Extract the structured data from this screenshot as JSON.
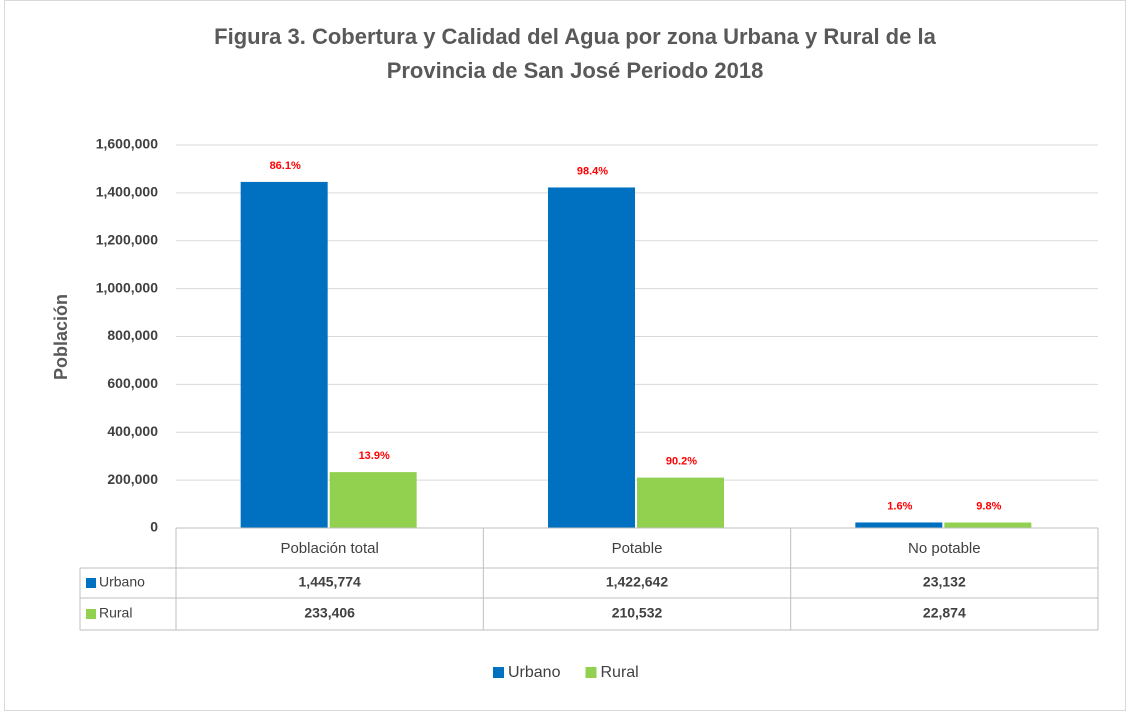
{
  "chart_data": {
    "type": "bar",
    "title": [
      "Figura 3. Cobertura y Calidad del Agua por zona Urbana y Rural de la",
      "Provincia de San José Periodo 2018"
    ],
    "y_label": "Población",
    "categories": [
      "Población total",
      "Potable",
      "No potable"
    ],
    "series": [
      {
        "name": "Urbano",
        "color": "#0070c0",
        "values": [
          1445774,
          1422642,
          23132
        ],
        "value_labels": [
          "1,445,774",
          "1,422,642",
          "23,132"
        ],
        "percent_labels": [
          "86.1%",
          "98.4%",
          "1.6%"
        ]
      },
      {
        "name": "Rural",
        "color": "#92d050",
        "values": [
          233406,
          210532,
          22874
        ],
        "value_labels": [
          "233,406",
          "210,532",
          "22,874"
        ],
        "percent_labels": [
          "13.9%",
          "90.2%",
          "9.8%"
        ]
      }
    ],
    "ylim": [
      0,
      1600000
    ],
    "yticks": [
      0,
      {
        "value": 200000,
        "label": "200,000"
      },
      {
        "value": 400000,
        "label": "400,000"
      },
      {
        "value": 600000,
        "label": "600,000"
      },
      {
        "value": 800000,
        "label": "800,000"
      },
      {
        "value": 1000000,
        "label": "1,000,000"
      },
      {
        "value": 1200000,
        "label": "1,200,000"
      },
      {
        "value": 1400000,
        "label": "1,400,000"
      },
      {
        "value": 1600000,
        "label": "1,600,000"
      }
    ],
    "grid": true,
    "legend": "bottom"
  }
}
